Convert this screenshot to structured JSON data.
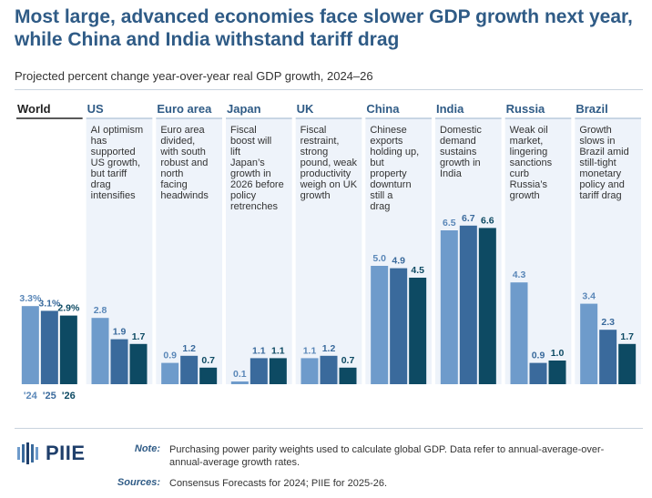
{
  "title": "Most large, advanced economies face slower GDP growth next year, while China and India withstand tariff drag",
  "subtitle": "Projected percent change year-over-year real GDP growth, 2024–26",
  "colors": {
    "title": "#2f5b86",
    "bar_2024": "#6e9bcb",
    "bar_2025": "#3a6a9c",
    "bar_2026": "#0d4a63",
    "panel_bg": "#eef3fa",
    "panel_title_world": "#222222",
    "panel_title": "#2f5b86"
  },
  "chart_data": {
    "type": "bar",
    "title": "Most large, advanced economies face slower GDP growth next year, while China and India withstand tariff drag",
    "subtitle": "Projected percent change year-over-year real GDP growth, 2024–26",
    "series_years": [
      "'24",
      "'25",
      "'26"
    ],
    "ylim": [
      0,
      8
    ],
    "grid": false,
    "panels": [
      {
        "name": "World",
        "note": "",
        "values": [
          3.3,
          3.1,
          2.9
        ],
        "labels": [
          "3.3%",
          "3.1%",
          "2.9%"
        ]
      },
      {
        "name": "US",
        "note": "AI optimism has supported US growth, but tariff drag intensifies",
        "values": [
          2.8,
          1.9,
          1.7
        ],
        "labels": [
          "2.8",
          "1.9",
          "1.7"
        ]
      },
      {
        "name": "Euro area",
        "note": "Euro area divided, with south robust and north facing headwinds",
        "values": [
          0.9,
          1.2,
          0.7
        ],
        "labels": [
          "0.9",
          "1.2",
          "0.7"
        ]
      },
      {
        "name": "Japan",
        "note": "Fiscal boost will lift Japan’s growth in 2026 before policy retrenches",
        "values": [
          0.1,
          1.1,
          1.1
        ],
        "labels": [
          "0.1",
          "1.1",
          "1.1"
        ]
      },
      {
        "name": "UK",
        "note": "Fiscal restraint, strong pound, weak productivity weigh on UK growth",
        "values": [
          1.1,
          1.2,
          0.7
        ],
        "labels": [
          "1.1",
          "1.2",
          "0.7"
        ]
      },
      {
        "name": "China",
        "note": "Chinese exports holding up, but property downturn still a drag",
        "values": [
          5.0,
          4.9,
          4.5
        ],
        "labels": [
          "5.0",
          "4.9",
          "4.5"
        ]
      },
      {
        "name": "India",
        "note": "Domestic demand sustains growth in India",
        "values": [
          6.5,
          6.7,
          6.6
        ],
        "labels": [
          "6.5",
          "6.7",
          "6.6"
        ]
      },
      {
        "name": "Russia",
        "note": "Weak oil market, lingering sanctions curb Russia’s growth",
        "values": [
          4.3,
          0.9,
          1.0
        ],
        "labels": [
          "4.3",
          "0.9",
          "1.0"
        ]
      },
      {
        "name": "Brazil",
        "note": "Growth slows in Brazil amid still-tight monetary policy and tariff drag",
        "values": [
          3.4,
          2.3,
          1.7
        ],
        "labels": [
          "3.4",
          "2.3",
          "1.7"
        ]
      }
    ]
  },
  "footer": {
    "logo_text": "PIIE",
    "note_label": "Note:",
    "note_text": "Purchasing power parity weights used to calculate global GDP. Data refer to annual-average-over-annual-average growth rates.",
    "sources_label": "Sources:",
    "sources_text": "Consensus Forecasts for 2024; PIIE for 2025-26."
  }
}
